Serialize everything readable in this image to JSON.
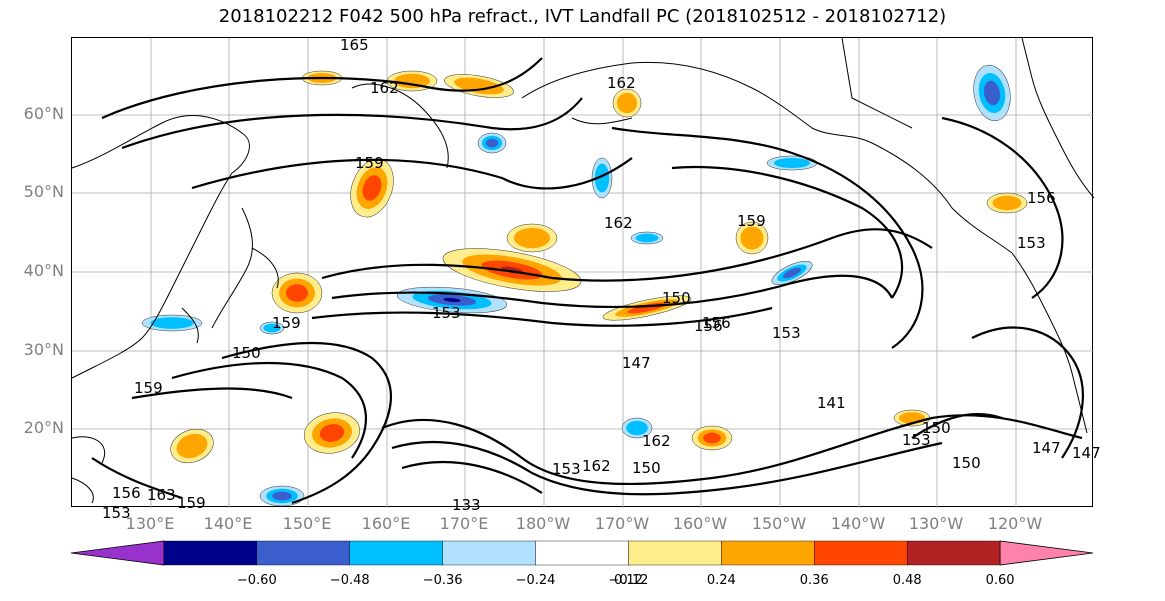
{
  "title": "2018102212 F042 500 hPa refract., IVT Landfall PC (2018102512 - 2018102712)",
  "map": {
    "projection": "cylindrical",
    "lon_range": [
      120,
      250
    ],
    "lat_range": [
      10,
      70
    ],
    "lat_labels": [
      "60°N",
      "50°N",
      "40°N",
      "30°N",
      "20°N"
    ],
    "lon_labels": [
      "130°E",
      "140°E",
      "150°E",
      "160°E",
      "170°E",
      "180°W",
      "170°W",
      "160°W",
      "150°W",
      "140°W",
      "130°W",
      "120°W"
    ],
    "grid": true,
    "contour_labels": [
      "165",
      "162",
      "162",
      "159",
      "162",
      "159",
      "156",
      "153",
      "156",
      "159",
      "150",
      "150",
      "156",
      "153",
      "147",
      "141",
      "153",
      "147",
      "150",
      "153",
      "133",
      "153",
      "159",
      "150",
      "147",
      "162",
      "150",
      "156",
      "159",
      "153",
      "162",
      "163"
    ]
  },
  "colorbar": {
    "ticks": [
      "−0.60",
      "−0.48",
      "−0.36",
      "−0.24",
      "−0.12",
      "0.12",
      "0.24",
      "0.36",
      "0.48",
      "0.60"
    ],
    "colors": [
      "#9932CC",
      "#00008B",
      "#3A5FCD",
      "#00BFFF",
      "#B0E2FF",
      "#FFFFFF",
      "#FFEC8B",
      "#FFA500",
      "#FF4500",
      "#B22222",
      "#FF82AB"
    ]
  }
}
